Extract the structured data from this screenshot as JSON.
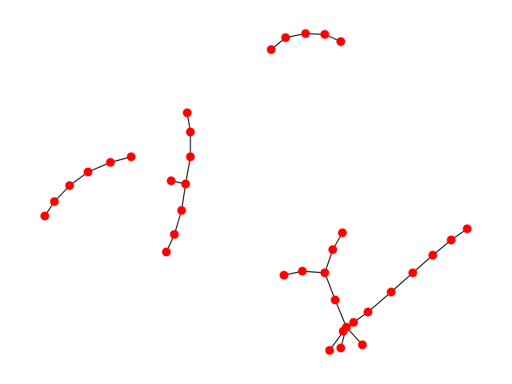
{
  "colors": {
    "background": "#ffffff",
    "node": "#ff0000",
    "edge": "#000000"
  },
  "components": [
    {
      "nodes": [
        "a1",
        "a2",
        "a3",
        "a4",
        "a5"
      ],
      "edges": [
        [
          "a1",
          "a2"
        ],
        [
          "a2",
          "a3"
        ],
        [
          "a3",
          "a4"
        ],
        [
          "a4",
          "a5"
        ]
      ]
    },
    {
      "nodes": [
        "b1",
        "b2",
        "b3",
        "b4",
        "b5",
        "b6"
      ],
      "edges": [
        [
          "b1",
          "b2"
        ],
        [
          "b2",
          "b3"
        ],
        [
          "b3",
          "b4"
        ],
        [
          "b4",
          "b5"
        ],
        [
          "b5",
          "b6"
        ]
      ]
    },
    {
      "nodes": [
        "c1",
        "c2",
        "c3",
        "c4",
        "c5",
        "c6",
        "c7",
        "c8"
      ],
      "edges": [
        [
          "c1",
          "c2"
        ],
        [
          "c2",
          "c3"
        ],
        [
          "c3",
          "c4"
        ],
        [
          "c4",
          "c5"
        ],
        [
          "c5",
          "c6"
        ],
        [
          "c6",
          "c7"
        ],
        [
          "c4",
          "c8"
        ]
      ]
    },
    {
      "nodes": [
        "d1",
        "d2",
        "d3",
        "d4",
        "d5",
        "d6",
        "d7",
        "d8",
        "d9",
        "d10",
        "d11",
        "d12",
        "d13",
        "d14",
        "d15",
        "d16",
        "d17"
      ],
      "edges": [
        [
          "d1",
          "d2"
        ],
        [
          "d2",
          "d3"
        ],
        [
          "d3",
          "d4"
        ],
        [
          "d4",
          "d5"
        ],
        [
          "d5",
          "d6"
        ],
        [
          "d6",
          "d7"
        ],
        [
          "d7",
          "d8"
        ],
        [
          "d8",
          "d9"
        ],
        [
          "d8",
          "d10"
        ],
        [
          "d8",
          "d11"
        ],
        [
          "d8",
          "d12"
        ],
        [
          "d8",
          "d13"
        ],
        [
          "d13",
          "d14"
        ],
        [
          "d14",
          "d15"
        ],
        [
          "d14",
          "d16"
        ],
        [
          "d16",
          "d17"
        ]
      ]
    }
  ]
}
